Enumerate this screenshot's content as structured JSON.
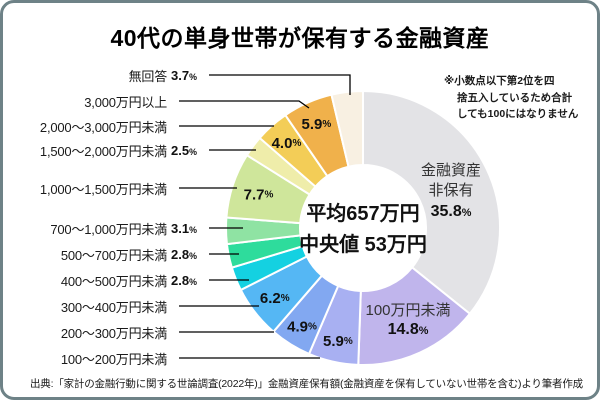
{
  "title": "40代の単身世帯が保有する金融資産",
  "note": {
    "lines": [
      "※小数点以下第2位を四",
      "捨五入しているため合計",
      "しても100にはなりません"
    ]
  },
  "source": "出典:「家計の金融行動に関する世論調査(2022年)」金融資産保有額(金融資産を保有していない世帯を含む)より筆者作成",
  "chart_data": {
    "type": "pie",
    "variant": "donut",
    "title": "40代の単身世帯が保有する金融資産",
    "unit": "%",
    "start_angle": "top",
    "direction": "clockwise",
    "center_text": {
      "line1": "平均657万円",
      "line2": "中央値 53万円"
    },
    "slices": [
      {
        "label": "金融資産非保有",
        "label_lines": [
          "金融資産",
          "非保有"
        ],
        "value": 35.8,
        "display": "35.8",
        "color": "#e3e3e6",
        "pct_position": "donut"
      },
      {
        "label": "100万円未満",
        "value": 14.8,
        "display": "14.8",
        "color": "#c0b5ec",
        "pct_position": "donut"
      },
      {
        "label": "100〜200万円未満",
        "value": 5.9,
        "display": "5.9",
        "color": "#a8b0f2",
        "pct_position": "donut"
      },
      {
        "label": "200〜300万円未満",
        "value": 4.9,
        "display": "4.9",
        "color": "#82a8f1",
        "pct_position": "donut"
      },
      {
        "label": "300〜400万円未満",
        "value": 6.2,
        "display": "6.2",
        "color": "#55b7f4",
        "pct_position": "donut"
      },
      {
        "label": "400〜500万円未満",
        "value": 2.8,
        "display": "2.8",
        "color": "#14d1e1",
        "pct_position": "legend"
      },
      {
        "label": "500〜700万円未満",
        "value": 2.8,
        "display": "2.8",
        "color": "#2edc9c",
        "pct_position": "legend"
      },
      {
        "label": "700〜1,000万円未満",
        "value": 3.1,
        "display": "3.1",
        "color": "#8fe3a3",
        "pct_position": "legend"
      },
      {
        "label": "1,000〜1,500万円未満",
        "value": 7.7,
        "display": "7.7",
        "color": "#cfe69b",
        "pct_position": "donut"
      },
      {
        "label": "1,500〜2,000万円未満",
        "value": 2.5,
        "display": "2.5",
        "color": "#efedaa",
        "pct_position": "legend"
      },
      {
        "label": "2,000〜3,000万円未満",
        "value": 4.0,
        "display": "4.0",
        "color": "#f3cd57",
        "pct_position": "donut"
      },
      {
        "label": "3,000万円以上",
        "value": 5.9,
        "display": "5.9",
        "color": "#f0b14b",
        "pct_position": "donut"
      },
      {
        "label": "無回答",
        "value": 3.7,
        "display": "3.7",
        "color": "#f8f0e2",
        "pct_position": "legend"
      }
    ]
  }
}
